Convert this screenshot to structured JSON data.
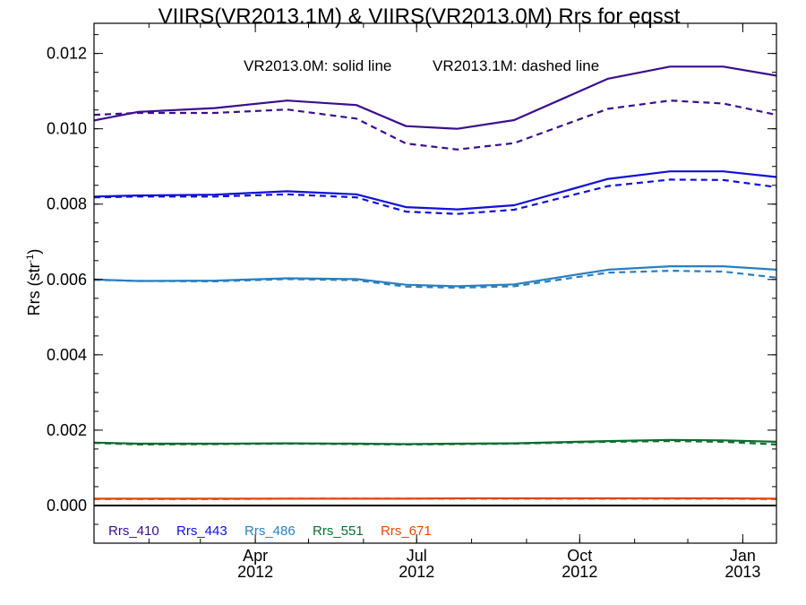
{
  "chart_data": {
    "type": "line",
    "title": "VIIRS(VR2013.1M) & VIIRS(VR2013.0M)  Rrs for eqsst",
    "ylabel": "Rrs (str",
    "ylabel_exp": "-1",
    "ylabel_close": ")",
    "annotation_solid": "VR2013.0M: solid line",
    "annotation_dashed": "VR2013.1M: dashed line",
    "xlim": [
      "2012-01-01",
      "2013-01-20"
    ],
    "ylim": [
      -0.001,
      0.0128
    ],
    "yticks": [
      {
        "value": 0.0,
        "label": "0.000"
      },
      {
        "value": 0.002,
        "label": "0.002"
      },
      {
        "value": 0.004,
        "label": "0.004"
      },
      {
        "value": 0.006,
        "label": "0.006"
      },
      {
        "value": 0.008,
        "label": "0.008"
      },
      {
        "value": 0.01,
        "label": "0.010"
      },
      {
        "value": 0.012,
        "label": "0.012"
      }
    ],
    "xticks": [
      {
        "date": "2012-04-01",
        "line1": "Apr",
        "line2": "2012"
      },
      {
        "date": "2012-07-01",
        "line1": "Jul",
        "line2": "2012"
      },
      {
        "date": "2012-10-01",
        "line1": "Oct",
        "line2": "2012"
      },
      {
        "date": "2013-01-01",
        "line1": "Jan",
        "line2": "2013"
      }
    ],
    "zero_line": 0,
    "x": [
      "2012-01-01",
      "2012-01-26",
      "2012-03-09",
      "2012-04-19",
      "2012-05-28",
      "2012-06-25",
      "2012-07-24",
      "2012-08-25",
      "2012-10-17",
      "2012-11-21",
      "2012-12-21",
      "2013-01-20"
    ],
    "series": [
      {
        "name": "Rrs_410",
        "color": "#3b0f8c",
        "style": "solid",
        "values": [
          0.01022,
          0.01045,
          0.01055,
          0.01075,
          0.01063,
          0.01007,
          0.01,
          0.01023,
          0.01133,
          0.01165,
          0.01165,
          0.01141
        ]
      },
      {
        "name": "Rrs_410",
        "color": "#3b0f8c",
        "style": "dashed",
        "values": [
          0.01037,
          0.01042,
          0.01042,
          0.01051,
          0.01027,
          0.00961,
          0.00945,
          0.00962,
          0.01053,
          0.01075,
          0.01067,
          0.01037
        ]
      },
      {
        "name": "Rrs_443",
        "color": "#1010d8",
        "style": "solid",
        "values": [
          0.0082,
          0.00823,
          0.00825,
          0.00834,
          0.00826,
          0.00792,
          0.00786,
          0.00797,
          0.00867,
          0.00887,
          0.00887,
          0.00872
        ]
      },
      {
        "name": "Rrs_443",
        "color": "#1010d8",
        "style": "dashed",
        "values": [
          0.00818,
          0.0082,
          0.0082,
          0.00826,
          0.00818,
          0.0078,
          0.00774,
          0.00785,
          0.00848,
          0.00865,
          0.00864,
          0.00845
        ]
      },
      {
        "name": "Rrs_486",
        "color": "#2a7fc0",
        "style": "solid",
        "values": [
          0.006,
          0.00596,
          0.00597,
          0.00603,
          0.00601,
          0.00586,
          0.00582,
          0.00587,
          0.00626,
          0.00635,
          0.00635,
          0.00626
        ]
      },
      {
        "name": "Rrs_486",
        "color": "#2a7fc0",
        "style": "dashed",
        "values": [
          0.00599,
          0.00596,
          0.00595,
          0.00601,
          0.00598,
          0.00581,
          0.00578,
          0.00582,
          0.00618,
          0.00623,
          0.00621,
          0.00605
        ]
      },
      {
        "name": "Rrs_551",
        "color": "#0b6e2e",
        "style": "solid",
        "values": [
          0.00167,
          0.00164,
          0.00164,
          0.00165,
          0.00164,
          0.00163,
          0.00164,
          0.00165,
          0.00171,
          0.00174,
          0.00173,
          0.00169
        ]
      },
      {
        "name": "Rrs_551",
        "color": "#0b6e2e",
        "style": "dashed",
        "values": [
          0.00166,
          0.00162,
          0.00163,
          0.00164,
          0.00163,
          0.00162,
          0.00163,
          0.00164,
          0.00169,
          0.00171,
          0.00169,
          0.00162
        ]
      },
      {
        "name": "Rrs_671",
        "color": "#e0480c",
        "style": "solid",
        "values": [
          0.00018,
          0.00018,
          0.00018,
          0.00018,
          0.00018,
          0.00018,
          0.00019,
          0.00019,
          0.00019,
          0.00019,
          0.00019,
          0.00018
        ]
      },
      {
        "name": "Rrs_671",
        "color": "#e0480c",
        "style": "dashed",
        "values": [
          0.00017,
          0.00017,
          0.00017,
          0.00018,
          0.00018,
          0.00018,
          0.00018,
          0.00018,
          0.00018,
          0.00018,
          0.00018,
          0.00017
        ]
      }
    ],
    "legend": [
      {
        "label": "Rrs_410",
        "color": "#3b0f8c"
      },
      {
        "label": "Rrs_443",
        "color": "#1010d8"
      },
      {
        "label": "Rrs_486",
        "color": "#2a7fc0"
      },
      {
        "label": "Rrs_551",
        "color": "#0b6e2e"
      },
      {
        "label": "Rrs_671",
        "color": "#e0480c"
      }
    ],
    "legend_position": "bottom-left",
    "grid": false
  }
}
